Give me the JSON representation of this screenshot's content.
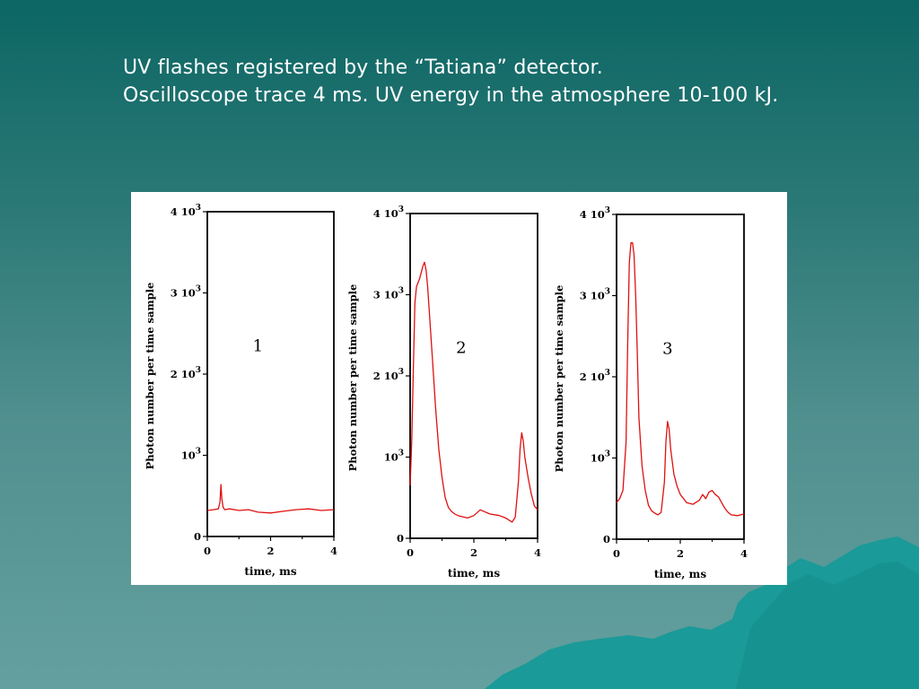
{
  "slide": {
    "caption_line1": "UV flashes registered by the “Tatiana” detector.",
    "caption_line2": "Oscilloscope trace 4 ms. UV energy in the atmosphere 10-100 kJ.",
    "colors": {
      "background_top": "#0c6663",
      "background_bottom": "#64a09f",
      "mountain": "#1a9a98",
      "trace": "#e01010"
    }
  },
  "chart_data": [
    {
      "type": "line",
      "panel_label": "1",
      "xlabel": "time, ms",
      "ylabel": "Photon number per time sample",
      "xlim": [
        0,
        4
      ],
      "ylim": [
        0,
        4000
      ],
      "x_ticks": [
        "0",
        "2",
        "4"
      ],
      "y_tick_labels": [
        {
          "mantissa": "",
          "base": "0",
          "exp": ""
        },
        {
          "mantissa": "",
          "base": "10",
          "exp": "3"
        },
        {
          "mantissa": "2 ",
          "base": "10",
          "exp": "3"
        },
        {
          "mantissa": "3 ",
          "base": "10",
          "exp": "3"
        },
        {
          "mantissa": "4 ",
          "base": "10",
          "exp": "3"
        }
      ],
      "series": [
        {
          "x": [
            0,
            0.2,
            0.35,
            0.4,
            0.43,
            0.46,
            0.5,
            0.55,
            0.7,
            1.0,
            1.3,
            1.6,
            2.0,
            2.4,
            2.8,
            3.2,
            3.6,
            4.0
          ],
          "y": [
            320,
            330,
            340,
            420,
            640,
            460,
            360,
            330,
            340,
            320,
            330,
            300,
            290,
            310,
            330,
            340,
            320,
            330
          ]
        }
      ]
    },
    {
      "type": "line",
      "panel_label": "2",
      "xlabel": "time, ms",
      "ylabel": "Photon number per time sample",
      "xlim": [
        0,
        4
      ],
      "ylim": [
        0,
        4000
      ],
      "x_ticks": [
        "0",
        "2",
        "4"
      ],
      "y_tick_labels": [
        {
          "mantissa": "",
          "base": "0",
          "exp": ""
        },
        {
          "mantissa": "",
          "base": "10",
          "exp": "3"
        },
        {
          "mantissa": "2 ",
          "base": "10",
          "exp": "3"
        },
        {
          "mantissa": "3 ",
          "base": "10",
          "exp": "3"
        },
        {
          "mantissa": "4 ",
          "base": "10",
          "exp": "3"
        }
      ],
      "series": [
        {
          "x": [
            0,
            0.05,
            0.1,
            0.15,
            0.2,
            0.3,
            0.4,
            0.45,
            0.5,
            0.55,
            0.6,
            0.7,
            0.8,
            0.9,
            1.0,
            1.1,
            1.2,
            1.3,
            1.4,
            1.5,
            1.6,
            1.7,
            1.8,
            2.0,
            2.2,
            2.5,
            2.8,
            3.0,
            3.2,
            3.3,
            3.4,
            3.45,
            3.5,
            3.55,
            3.6,
            3.7,
            3.8,
            3.9,
            4.0
          ],
          "y": [
            650,
            1200,
            2100,
            2900,
            3100,
            3200,
            3350,
            3400,
            3300,
            3100,
            2800,
            2200,
            1600,
            1100,
            750,
            500,
            380,
            330,
            300,
            280,
            270,
            260,
            250,
            280,
            350,
            300,
            280,
            250,
            200,
            260,
            700,
            1100,
            1300,
            1200,
            1000,
            750,
            550,
            400,
            350
          ]
        }
      ]
    },
    {
      "type": "line",
      "panel_label": "3",
      "xlabel": "time, ms",
      "ylabel": "Photon number per time sample",
      "xlim": [
        0,
        4
      ],
      "ylim": [
        0,
        4000
      ],
      "x_ticks": [
        "0",
        "2",
        "4"
      ],
      "y_tick_labels": [
        {
          "mantissa": "",
          "base": "0",
          "exp": ""
        },
        {
          "mantissa": "",
          "base": "10",
          "exp": "3"
        },
        {
          "mantissa": "2 ",
          "base": "10",
          "exp": "3"
        },
        {
          "mantissa": "3 ",
          "base": "10",
          "exp": "3"
        },
        {
          "mantissa": "4 ",
          "base": "10",
          "exp": "3"
        }
      ],
      "series": [
        {
          "x": [
            0,
            0.1,
            0.2,
            0.3,
            0.35,
            0.4,
            0.45,
            0.5,
            0.55,
            0.6,
            0.65,
            0.7,
            0.8,
            0.9,
            1.0,
            1.1,
            1.2,
            1.3,
            1.4,
            1.5,
            1.55,
            1.6,
            1.65,
            1.7,
            1.8,
            1.9,
            2.0,
            2.2,
            2.4,
            2.6,
            2.7,
            2.8,
            2.9,
            3.0,
            3.1,
            3.2,
            3.3,
            3.4,
            3.5,
            3.6,
            3.8,
            4.0
          ],
          "y": [
            450,
            500,
            600,
            1200,
            2400,
            3400,
            3650,
            3650,
            3500,
            3000,
            2300,
            1500,
            900,
            600,
            420,
            350,
            320,
            300,
            330,
            700,
            1200,
            1450,
            1350,
            1100,
            800,
            650,
            550,
            450,
            430,
            480,
            550,
            500,
            580,
            600,
            550,
            520,
            450,
            380,
            330,
            300,
            290,
            310
          ]
        }
      ]
    }
  ]
}
